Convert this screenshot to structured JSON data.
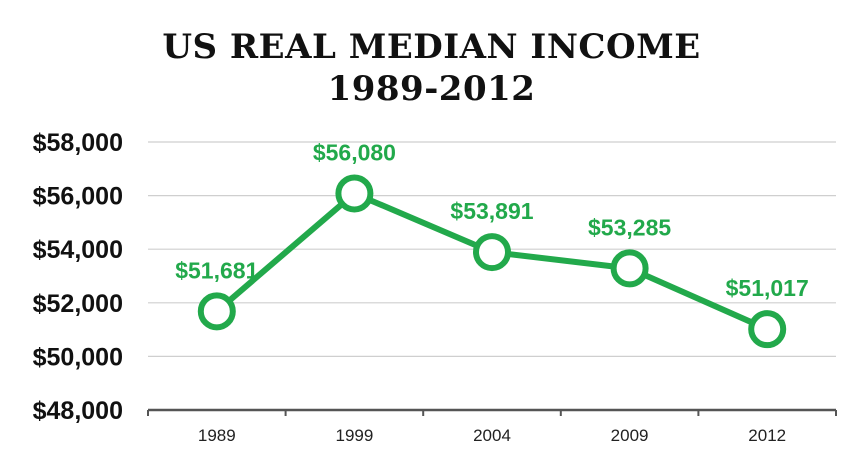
{
  "chart_data": {
    "type": "line",
    "title": [
      "US REAL MEDIAN INCOME",
      "1989-2012"
    ],
    "categories": [
      "1989",
      "1999",
      "2004",
      "2009",
      "2012"
    ],
    "series": [
      {
        "values": [
          51681,
          56080,
          53891,
          53285,
          51017
        ]
      }
    ],
    "data_labels": [
      "$51,681",
      "$56,080",
      "$53,891",
      "$53,285",
      "$51,017"
    ],
    "y_tick_labels": [
      "$48,000",
      "$50,000",
      "$52,000",
      "$54,000",
      "$56,000",
      "$58,000"
    ],
    "y_ticks": [
      48000,
      50000,
      52000,
      54000,
      56000,
      58000
    ],
    "ylim": [
      48000,
      58000
    ],
    "grid": true,
    "legend": "none",
    "colors": {
      "line": "#22a94b",
      "marker_fill": "#ffffff",
      "grid": "#cfcfcf",
      "axis": "#555555"
    }
  }
}
